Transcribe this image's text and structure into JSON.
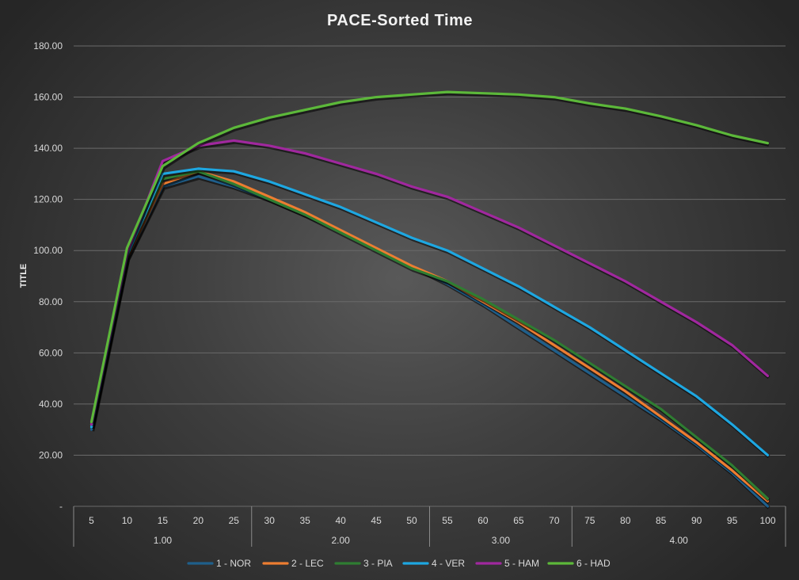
{
  "chart_data": {
    "type": "line",
    "title": "PACE-Sorted Time",
    "ylabel": "TITLE",
    "xlabel": "",
    "ylim": [
      0,
      180
    ],
    "ytick_values": [
      0,
      20,
      40,
      60,
      80,
      100,
      120,
      140,
      160,
      180
    ],
    "ytick_labels": [
      "-",
      "20.00",
      "40.00",
      "60.00",
      "80.00",
      "100.00",
      "120.00",
      "140.00",
      "160.00",
      "180.00"
    ],
    "categories": [
      "5",
      "10",
      "15",
      "20",
      "25",
      "30",
      "35",
      "40",
      "45",
      "50",
      "55",
      "60",
      "65",
      "70",
      "75",
      "80",
      "85",
      "90",
      "95",
      "100"
    ],
    "groups": [
      {
        "label": "1.00",
        "count": 5
      },
      {
        "label": "2.00",
        "count": 5
      },
      {
        "label": "3.00",
        "count": 4
      },
      {
        "label": "4.00",
        "count": 6
      }
    ],
    "grid": true,
    "legend_position": "bottom",
    "series": [
      {
        "name": "1 - NOR",
        "color": "#1f5f8b",
        "values": [
          30,
          97,
          125,
          129,
          125,
          120,
          114,
          108,
          101,
          94,
          87,
          79,
          70,
          61,
          52,
          43,
          34,
          24,
          13,
          0
        ]
      },
      {
        "name": "2 - LEC",
        "color": "#ed7d31",
        "values": [
          32,
          97,
          126,
          131,
          127,
          121,
          115,
          108,
          101,
          94,
          88,
          80,
          72,
          63,
          54,
          45,
          35,
          25,
          14,
          2
        ]
      },
      {
        "name": "3 - PIA",
        "color": "#2f7d32",
        "values": [
          31,
          99,
          128,
          131,
          126,
          120,
          114,
          107,
          100,
          93,
          88,
          81,
          73,
          65,
          56,
          47,
          38,
          27,
          16,
          3
        ]
      },
      {
        "name": "4 - VER",
        "color": "#1ea7e1",
        "values": [
          31,
          98,
          130,
          132,
          131,
          127,
          122,
          117,
          111,
          105,
          100,
          93,
          86,
          78,
          70,
          61,
          52,
          43,
          32,
          20
        ]
      },
      {
        "name": "5 - HAM",
        "color": "#a0289e",
        "values": [
          32,
          99,
          135,
          141,
          143,
          141,
          138,
          134,
          130,
          125,
          121,
          115,
          109,
          102,
          95,
          88,
          80,
          72,
          63,
          51
        ]
      },
      {
        "name": "6 - HAD",
        "color": "#5cb83a",
        "values": [
          33,
          101,
          133,
          142,
          148,
          152,
          155,
          158,
          160,
          161,
          162,
          161.5,
          161,
          160,
          157.5,
          155.5,
          152.5,
          149,
          145,
          142
        ]
      }
    ]
  }
}
